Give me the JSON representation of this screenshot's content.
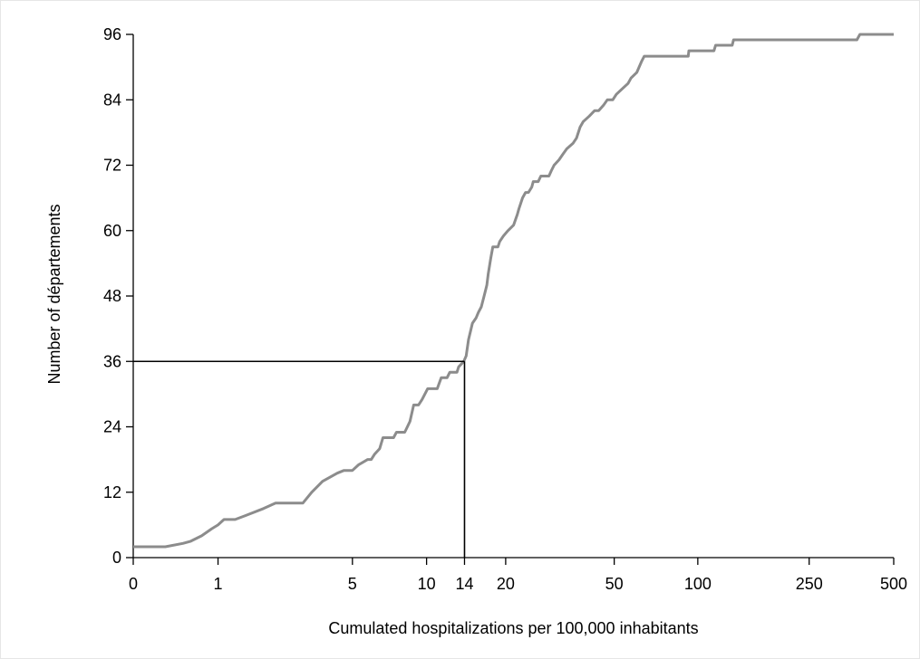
{
  "chart_data": {
    "type": "line",
    "xlabel": "Cumulated hospitalizations per 100,000 inhabitants",
    "ylabel": "Number of départements",
    "xscale": "log1p",
    "xlim": [
      0,
      500
    ],
    "ylim": [
      0,
      96
    ],
    "x_ticks": [
      0,
      1,
      5,
      10,
      14,
      20,
      50,
      100,
      250,
      500
    ],
    "y_ticks": [
      0,
      12,
      24,
      36,
      48,
      60,
      72,
      84,
      96
    ],
    "grid": false,
    "legend": "none",
    "series": [
      {
        "color": "#8c8c8c",
        "points": [
          [
            0,
            2
          ],
          [
            0.3,
            2
          ],
          [
            0.5,
            2.6
          ],
          [
            0.6,
            3
          ],
          [
            0.75,
            4
          ],
          [
            0.9,
            5.3
          ],
          [
            1.0,
            6
          ],
          [
            1.1,
            7
          ],
          [
            1.3,
            7
          ],
          [
            1.5,
            7.7
          ],
          [
            1.9,
            9
          ],
          [
            2.2,
            10
          ],
          [
            3.0,
            10
          ],
          [
            3.3,
            12
          ],
          [
            3.7,
            14
          ],
          [
            4.3,
            15.5
          ],
          [
            4.6,
            16
          ],
          [
            5.0,
            16
          ],
          [
            5.3,
            17
          ],
          [
            5.8,
            18
          ],
          [
            6.0,
            18
          ],
          [
            6.2,
            19
          ],
          [
            6.5,
            20
          ],
          [
            6.7,
            22
          ],
          [
            7.4,
            22
          ],
          [
            7.6,
            23
          ],
          [
            8.2,
            23
          ],
          [
            8.3,
            23.5
          ],
          [
            8.6,
            25
          ],
          [
            8.9,
            28
          ],
          [
            9.3,
            28
          ],
          [
            9.6,
            29
          ],
          [
            10.1,
            31
          ],
          [
            11.0,
            31
          ],
          [
            11.2,
            32
          ],
          [
            11.4,
            33
          ],
          [
            12.0,
            33
          ],
          [
            12.3,
            34
          ],
          [
            13.1,
            34
          ],
          [
            13.3,
            35
          ],
          [
            13.9,
            36
          ],
          [
            14.2,
            37
          ],
          [
            14.5,
            40
          ],
          [
            15.0,
            43
          ],
          [
            15.5,
            44
          ],
          [
            15.8,
            45
          ],
          [
            16.2,
            46
          ],
          [
            16.6,
            48
          ],
          [
            17.0,
            50
          ],
          [
            17.2,
            52
          ],
          [
            17.6,
            55
          ],
          [
            17.9,
            57
          ],
          [
            18.7,
            57
          ],
          [
            19.0,
            58
          ],
          [
            19.6,
            59
          ],
          [
            20.4,
            60
          ],
          [
            21.4,
            61
          ],
          [
            22.1,
            63
          ],
          [
            22.4,
            64
          ],
          [
            23.1,
            66
          ],
          [
            23.7,
            67
          ],
          [
            24.3,
            67
          ],
          [
            25.0,
            68
          ],
          [
            25.3,
            69
          ],
          [
            26.4,
            69
          ],
          [
            27.0,
            70
          ],
          [
            28.9,
            70
          ],
          [
            29.5,
            71
          ],
          [
            30.2,
            72
          ],
          [
            31.5,
            73
          ],
          [
            32.5,
            74
          ],
          [
            33.6,
            75
          ],
          [
            35.4,
            76
          ],
          [
            36.5,
            77
          ],
          [
            37.6,
            79
          ],
          [
            38.6,
            80
          ],
          [
            40.6,
            81
          ],
          [
            42.4,
            82
          ],
          [
            43.9,
            82
          ],
          [
            45.7,
            83
          ],
          [
            47.2,
            84
          ],
          [
            49.4,
            84
          ],
          [
            50.9,
            85
          ],
          [
            53.4,
            86
          ],
          [
            56.1,
            87
          ],
          [
            57.5,
            88
          ],
          [
            60.3,
            89
          ],
          [
            62.7,
            91
          ],
          [
            64.2,
            92
          ],
          [
            92.4,
            92
          ],
          [
            92.9,
            93
          ],
          [
            114.3,
            93
          ],
          [
            115.8,
            94
          ],
          [
            132.8,
            94
          ],
          [
            134.3,
            95
          ],
          [
            369.9,
            95
          ],
          [
            379.0,
            96
          ],
          [
            500,
            96
          ]
        ]
      }
    ],
    "reference_lines": [
      {
        "type": "horizontal",
        "y": 36,
        "x_from": 0,
        "x_to": 14
      },
      {
        "type": "vertical",
        "x": 14,
        "y_from": 0,
        "y_to": 36
      }
    ]
  }
}
